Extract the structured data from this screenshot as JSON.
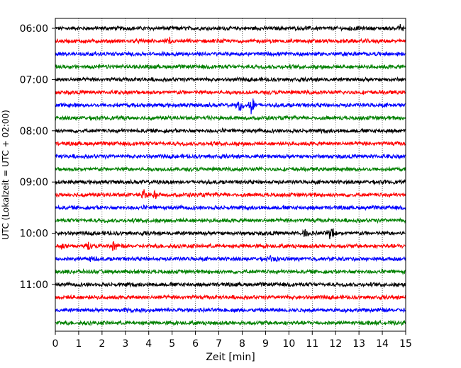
{
  "chart_data": {
    "type": "line",
    "title": "",
    "xlabel": "Zeit  [min]",
    "ylabel": "UTC (Lokalzeit = UTC + 02:00)",
    "xlim": [
      0,
      15
    ],
    "x_ticks": [
      "0",
      "1",
      "2",
      "3",
      "4",
      "5",
      "6",
      "7",
      "8",
      "9",
      "10",
      "11",
      "12",
      "13",
      "14",
      "15"
    ],
    "y_tick_labels": [
      "06:00",
      "07:00",
      "08:00",
      "09:00",
      "10:00",
      "11:00"
    ],
    "grid": "vertical dotted lines at each minute",
    "trace_interval_minutes": 15,
    "start_time": "06:00",
    "trace_count": 24,
    "trace_colors": [
      "#000000",
      "#ff0000",
      "#0000ff",
      "#008000"
    ],
    "events": [
      {
        "trace_start": "06:00",
        "minute": 12.6,
        "amplitude": 0.35
      },
      {
        "trace_start": "06:00",
        "minute": 14.8,
        "amplitude": 0.5
      },
      {
        "trace_start": "06:15",
        "minute": 4.9,
        "amplitude": 0.45
      },
      {
        "trace_start": "07:30",
        "minute": 7.9,
        "amplitude": 0.8
      },
      {
        "trace_start": "07:30",
        "minute": 8.4,
        "amplitude": 1.1
      },
      {
        "trace_start": "09:15",
        "minute": 3.8,
        "amplitude": 0.7
      },
      {
        "trace_start": "09:15",
        "minute": 4.3,
        "amplitude": 0.55
      },
      {
        "trace_start": "10:00",
        "minute": 10.7,
        "amplitude": 0.5
      },
      {
        "trace_start": "10:00",
        "minute": 11.8,
        "amplitude": 1.0
      },
      {
        "trace_start": "10:15",
        "minute": 0.3,
        "amplitude": 0.45
      },
      {
        "trace_start": "10:15",
        "minute": 1.4,
        "amplitude": 0.4
      },
      {
        "trace_start": "10:15",
        "minute": 2.5,
        "amplitude": 0.7
      },
      {
        "trace_start": "10:30",
        "minute": 1.5,
        "amplitude": 0.45
      },
      {
        "trace_start": "10:30",
        "minute": 9.3,
        "amplitude": 0.45
      },
      {
        "trace_start": "10:45",
        "minute": 3.7,
        "amplitude": 0.35
      },
      {
        "trace_start": "11:30",
        "minute": 3.0,
        "amplitude": 0.35
      }
    ]
  }
}
